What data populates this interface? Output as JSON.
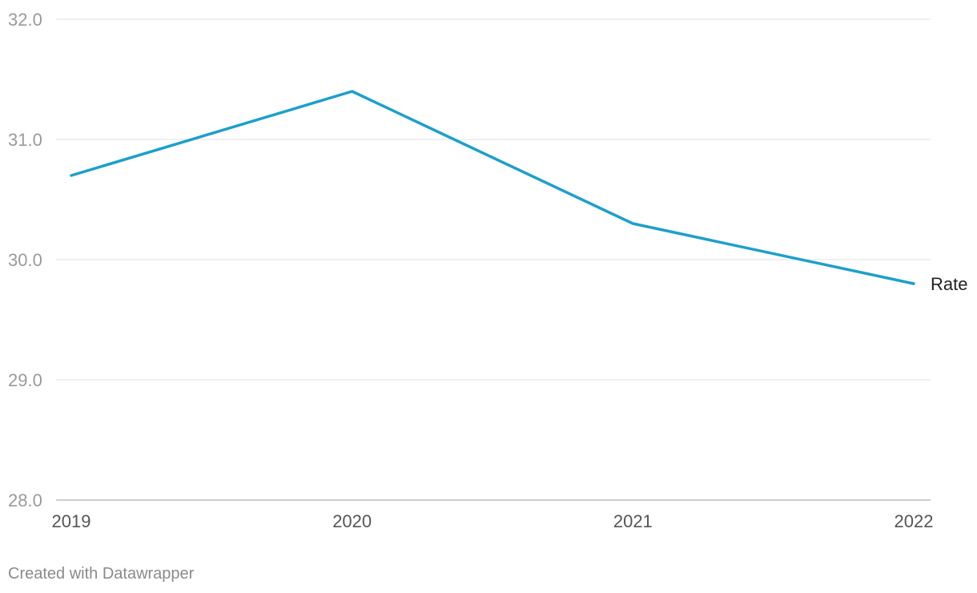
{
  "chart_data": {
    "type": "line",
    "title": "",
    "xlabel": "",
    "ylabel": "",
    "x": [
      "2019",
      "2020",
      "2021",
      "2022"
    ],
    "series": [
      {
        "name": "Rate",
        "values": [
          30.7,
          31.4,
          30.3,
          29.8
        ],
        "color": "#1d9fcb"
      }
    ],
    "ylim": [
      28.0,
      32.0
    ],
    "yticks": [
      "28.0",
      "29.0",
      "30.0",
      "31.0",
      "32.0"
    ],
    "grid": true,
    "legend": "direct label at line end",
    "colors": {
      "line": "#1d9fcb",
      "grid": "#e2e2e2",
      "baseline": "#bdbdbd"
    }
  },
  "footer": {
    "credit": "Created with Datawrapper"
  }
}
